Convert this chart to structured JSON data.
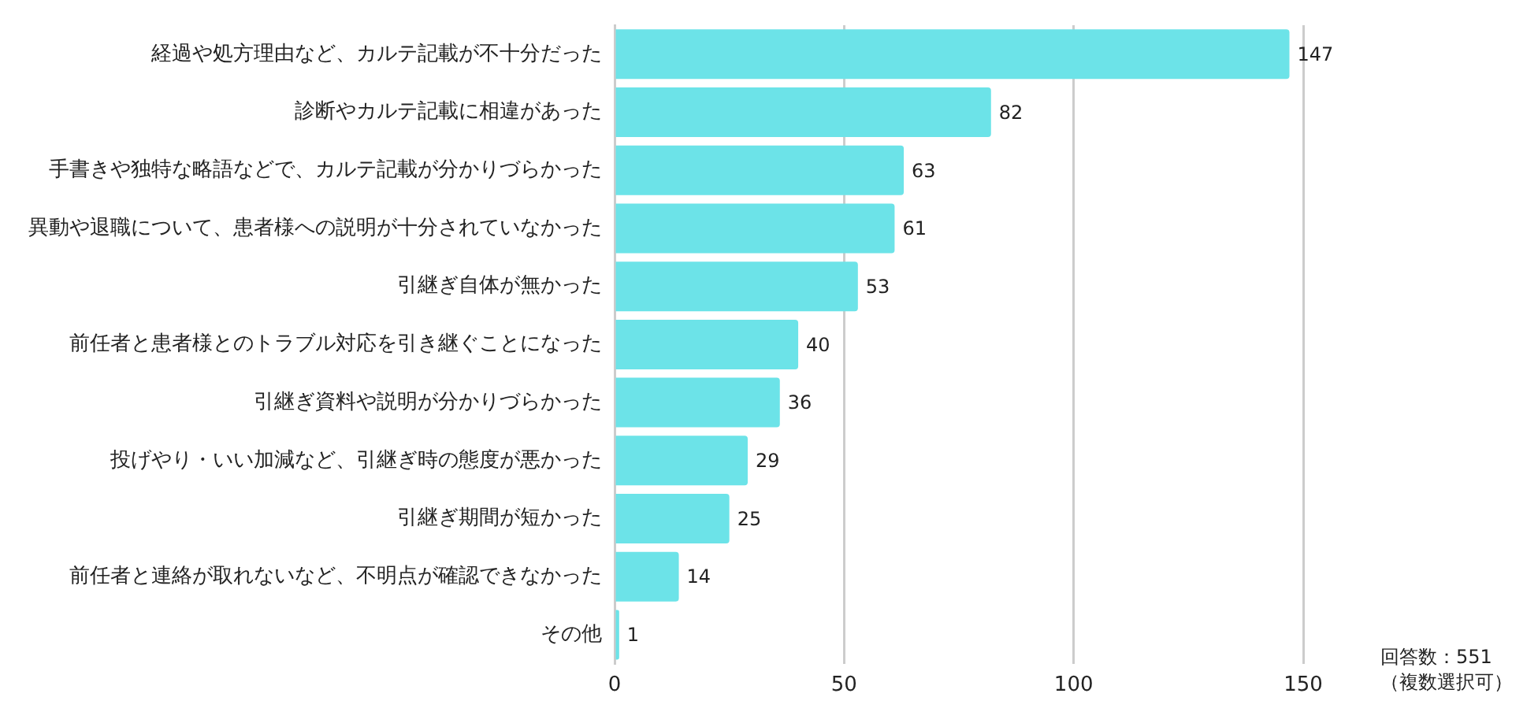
{
  "chart_data": {
    "type": "bar",
    "orientation": "horizontal",
    "categories": [
      "経過や処方理由など、カルテ記載が不十分だった",
      "診断やカルテ記載に相違があった",
      "手書きや独特な略語などで、カルテ記載が分かりづらかった",
      "異動や退職について、患者様への説明が十分されていなかった",
      "引継ぎ自体が無かった",
      "前任者と患者様とのトラブル対応を引き継ぐことになった",
      "引継ぎ資料や説明が分かりづらかった",
      "投げやり・いい加減など、引継ぎ時の態度が悪かった",
      "引継ぎ期間が短かった",
      "前任者と連絡が取れないなど、不明点が確認できなかった",
      "その他"
    ],
    "values": [
      147,
      82,
      63,
      61,
      53,
      40,
      36,
      29,
      25,
      14,
      1
    ],
    "color": "#6ce3e8",
    "xlim": [
      0,
      150
    ],
    "xticks": [
      0,
      50,
      100,
      150
    ],
    "grid": "x",
    "data_labels": true,
    "annotations": [
      "回答数：551",
      "（複数選択可）"
    ]
  }
}
